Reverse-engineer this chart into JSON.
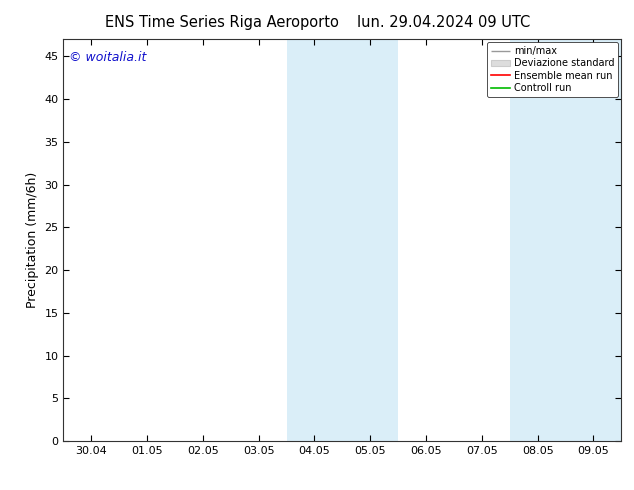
{
  "title_left": "ENS Time Series Riga Aeroporto",
  "title_right": "lun. 29.04.2024 09 UTC",
  "ylabel": "Precipitation (mm/6h)",
  "watermark": "© woitalia.it",
  "ylim": [
    0,
    47
  ],
  "yticks": [
    0,
    5,
    10,
    15,
    20,
    25,
    30,
    35,
    40,
    45
  ],
  "x_tick_labels": [
    "30.04",
    "01.05",
    "02.05",
    "03.05",
    "04.05",
    "05.05",
    "06.05",
    "07.05",
    "08.05",
    "09.05"
  ],
  "x_tick_positions": [
    0,
    1,
    2,
    3,
    4,
    5,
    6,
    7,
    8,
    9
  ],
  "xlim": [
    -0.5,
    9.5
  ],
  "shade_bands": [
    {
      "x_start": 3.5,
      "x_end": 5.5,
      "color": "#daeef8"
    },
    {
      "x_start": 7.5,
      "x_end": 9.5,
      "color": "#daeef8"
    }
  ],
  "legend_labels": [
    "min/max",
    "Deviazione standard",
    "Ensemble mean run",
    "Controll run"
  ],
  "legend_line_colors": [
    "#999999",
    "#cccccc",
    "#ff0000",
    "#00bb00"
  ],
  "legend_patch_colors": [
    "#ffffff",
    "#dddddd",
    "#ffffff",
    "#ffffff"
  ],
  "background_color": "#ffffff",
  "plot_bg_color": "#ffffff",
  "watermark_color": "#1111cc",
  "title_fontsize": 10.5,
  "tick_fontsize": 8,
  "ylabel_fontsize": 9,
  "watermark_fontsize": 9
}
